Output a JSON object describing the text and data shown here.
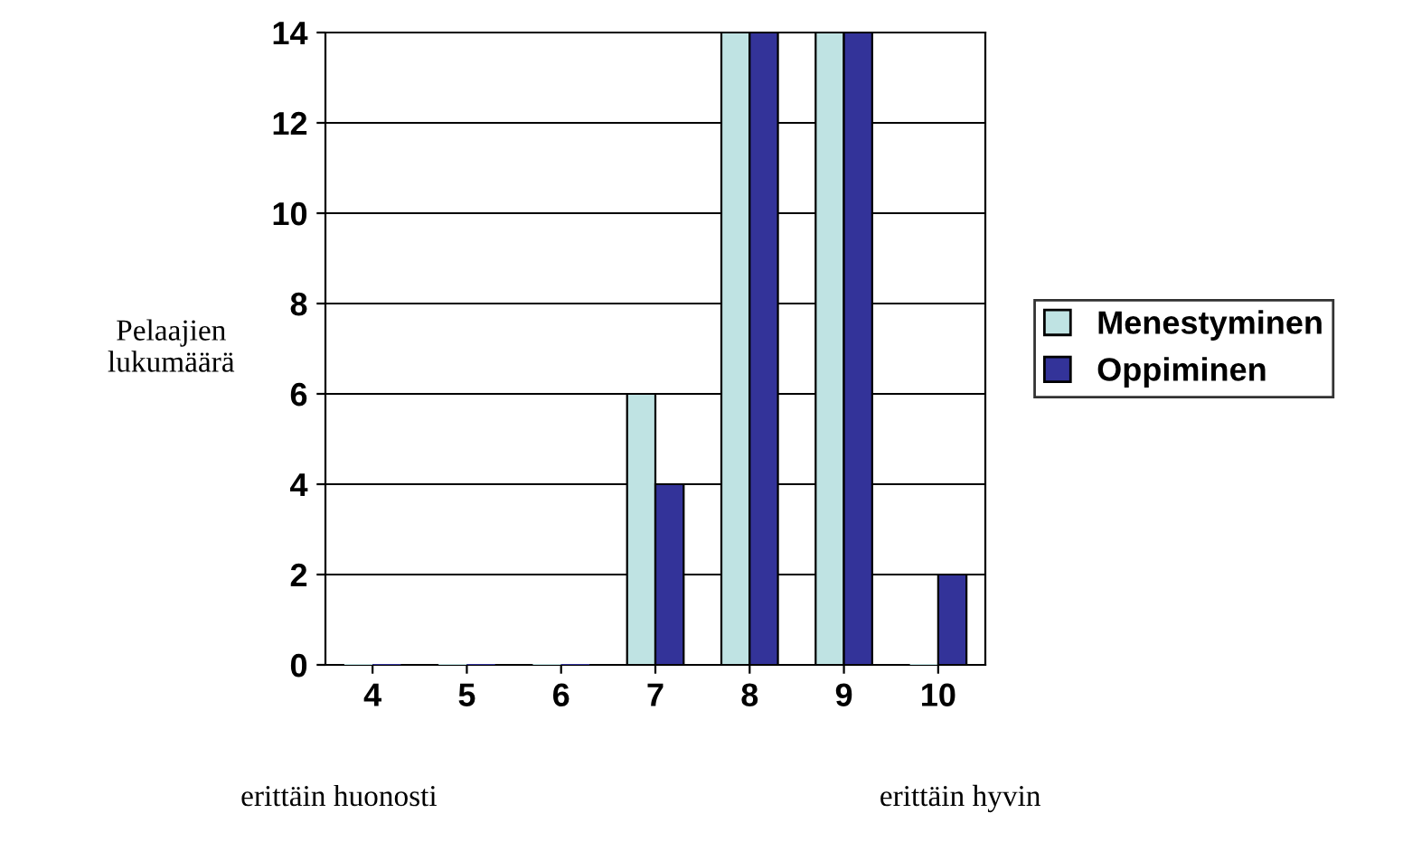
{
  "chart_data": {
    "type": "bar",
    "ylabel": "Pelaajien\nlukumäärä",
    "categories": [
      "4",
      "5",
      "6",
      "7",
      "8",
      "9",
      "10"
    ],
    "series": [
      {
        "name": "Menestyminen",
        "color": "#bfe3e3",
        "values": [
          0,
          0,
          0,
          6,
          14,
          14,
          0
        ]
      },
      {
        "name": "Oppiminen",
        "color": "#333399",
        "values": [
          0,
          0,
          0,
          4,
          14,
          14,
          2
        ]
      }
    ],
    "ylim": [
      0,
      14
    ],
    "yticks": [
      0,
      2,
      4,
      6,
      8,
      10,
      12,
      14
    ],
    "grid": "y",
    "legend": "right",
    "annotations": [
      "erittäin huonosti",
      "erittäin hyvin"
    ]
  }
}
